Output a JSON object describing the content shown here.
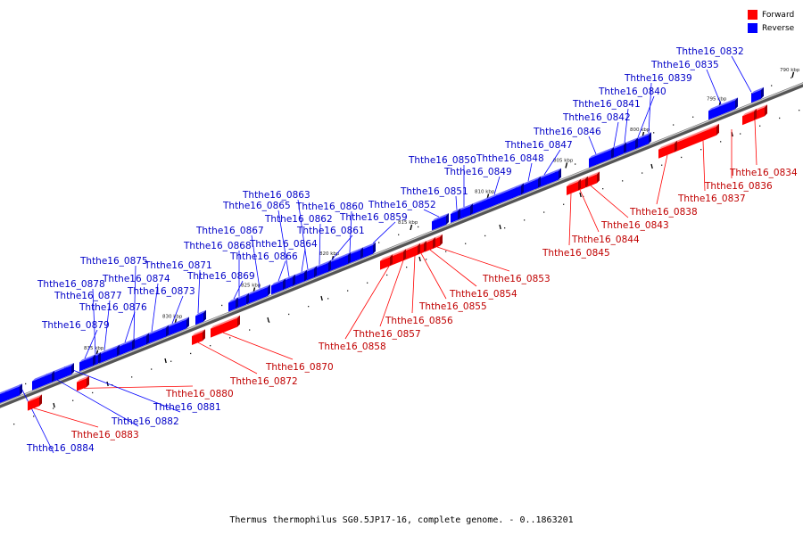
{
  "caption": "Thermus thermophilus SG0.5JP17-16, complete genome. - 0..1863201",
  "legend": {
    "forward": {
      "label": "Forward",
      "color": "#ff0000"
    },
    "reverse": {
      "label": "Reverse",
      "color": "#0000ff"
    }
  },
  "scale_ticks_kbp": [
    "790 kbp",
    "795 kbp",
    "800 kbp",
    "805 kbp",
    "810 kbp",
    "815 kbp",
    "820 kbp",
    "825 kbp",
    "830 kbp",
    "835 kbp"
  ],
  "features": [
    {
      "name": "Ththe16_0832",
      "strand": "reverse"
    },
    {
      "name": "Ththe16_0834",
      "strand": "forward"
    },
    {
      "name": "Ththe16_0835",
      "strand": "reverse"
    },
    {
      "name": "Ththe16_0836",
      "strand": "forward"
    },
    {
      "name": "Ththe16_0837",
      "strand": "forward"
    },
    {
      "name": "Ththe16_0838",
      "strand": "forward"
    },
    {
      "name": "Ththe16_0839",
      "strand": "reverse"
    },
    {
      "name": "Ththe16_0840",
      "strand": "reverse"
    },
    {
      "name": "Ththe16_0841",
      "strand": "reverse"
    },
    {
      "name": "Ththe16_0842",
      "strand": "reverse"
    },
    {
      "name": "Ththe16_0843",
      "strand": "forward"
    },
    {
      "name": "Ththe16_0844",
      "strand": "forward"
    },
    {
      "name": "Ththe16_0845",
      "strand": "forward"
    },
    {
      "name": "Ththe16_0846",
      "strand": "reverse"
    },
    {
      "name": "Ththe16_0847",
      "strand": "reverse"
    },
    {
      "name": "Ththe16_0848",
      "strand": "reverse"
    },
    {
      "name": "Ththe16_0849",
      "strand": "reverse"
    },
    {
      "name": "Ththe16_0850",
      "strand": "reverse"
    },
    {
      "name": "Ththe16_0851",
      "strand": "reverse"
    },
    {
      "name": "Ththe16_0852",
      "strand": "reverse"
    },
    {
      "name": "Ththe16_0853",
      "strand": "forward"
    },
    {
      "name": "Ththe16_0854",
      "strand": "forward"
    },
    {
      "name": "Ththe16_0855",
      "strand": "forward"
    },
    {
      "name": "Ththe16_0856",
      "strand": "forward"
    },
    {
      "name": "Ththe16_0857",
      "strand": "forward"
    },
    {
      "name": "Ththe16_0858",
      "strand": "forward"
    },
    {
      "name": "Ththe16_0859",
      "strand": "reverse"
    },
    {
      "name": "Ththe16_0860",
      "strand": "reverse"
    },
    {
      "name": "Ththe16_0861",
      "strand": "reverse"
    },
    {
      "name": "Ththe16_0862",
      "strand": "reverse"
    },
    {
      "name": "Ththe16_0863",
      "strand": "reverse"
    },
    {
      "name": "Ththe16_0864",
      "strand": "reverse"
    },
    {
      "name": "Ththe16_0865",
      "strand": "reverse"
    },
    {
      "name": "Ththe16_0866",
      "strand": "reverse"
    },
    {
      "name": "Ththe16_0867",
      "strand": "reverse"
    },
    {
      "name": "Ththe16_0868",
      "strand": "reverse"
    },
    {
      "name": "Ththe16_0869",
      "strand": "reverse"
    },
    {
      "name": "Ththe16_0870",
      "strand": "forward"
    },
    {
      "name": "Ththe16_0871",
      "strand": "reverse"
    },
    {
      "name": "Ththe16_0872",
      "strand": "forward"
    },
    {
      "name": "Ththe16_0873",
      "strand": "reverse"
    },
    {
      "name": "Ththe16_0874",
      "strand": "reverse"
    },
    {
      "name": "Ththe16_0875",
      "strand": "reverse"
    },
    {
      "name": "Ththe16_0876",
      "strand": "reverse"
    },
    {
      "name": "Ththe16_0877",
      "strand": "reverse"
    },
    {
      "name": "Ththe16_0878",
      "strand": "reverse"
    },
    {
      "name": "Ththe16_0879",
      "strand": "reverse"
    },
    {
      "name": "Ththe16_0880",
      "strand": "forward"
    },
    {
      "name": "Ththe16_0881",
      "strand": "reverse"
    },
    {
      "name": "Ththe16_0882",
      "strand": "reverse"
    },
    {
      "name": "Ththe16_0883",
      "strand": "forward"
    },
    {
      "name": "Ththe16_0884",
      "strand": "reverse"
    }
  ]
}
